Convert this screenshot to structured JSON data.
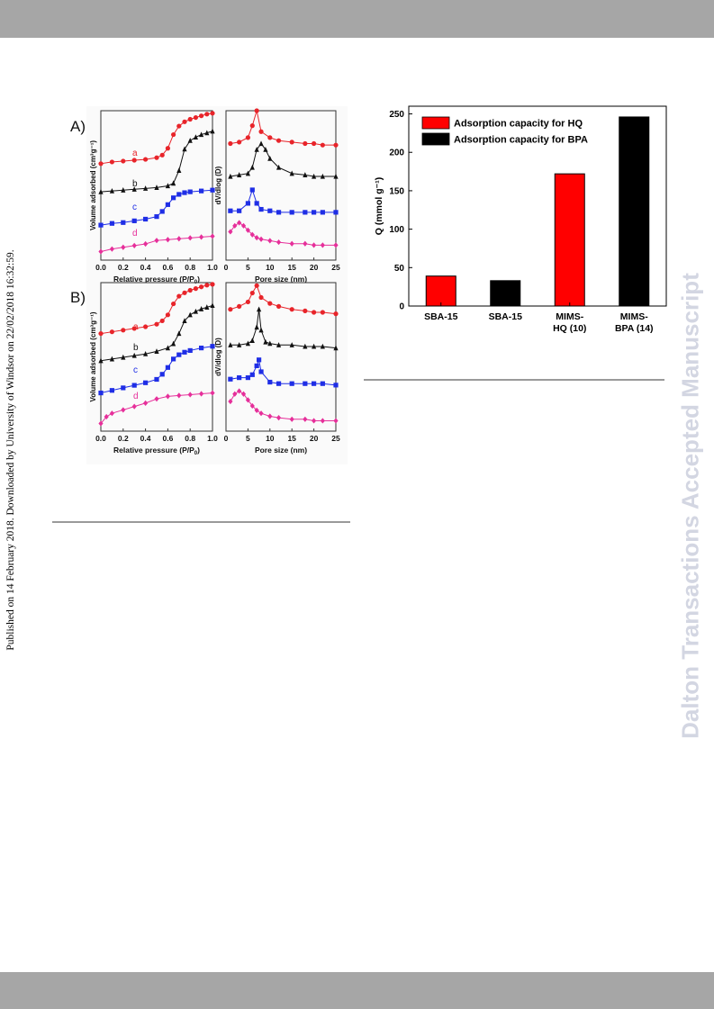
{
  "header_band": "",
  "side_text": "Published on 14 February 2018. Downloaded by University of Windsor on 22/02/2018 16:32:59.",
  "watermark": "Dalton Transactions Accepted Manuscript",
  "figure_left": {
    "panels": [
      {
        "label": "A)",
        "iso_chart": {
          "type": "line",
          "xlabel_main": "Relative pressure (P/P",
          "xlabel_sub": "0",
          "xlabel_end": ")",
          "ylabel": "Volume adsorbed (cm³g⁻¹)",
          "xlim": [
            0.0,
            1.0
          ],
          "xticks": [
            "0.0",
            "0.2",
            "0.4",
            "0.6",
            "0.8",
            "1.0"
          ],
          "series": [
            {
              "name": "a",
              "color": "#e8242a",
              "marker": "circle",
              "x": [
                0.0,
                0.1,
                0.2,
                0.3,
                0.4,
                0.5,
                0.55,
                0.6,
                0.65,
                0.7,
                0.75,
                0.8,
                0.85,
                0.9,
                0.95,
                1.0
              ],
              "y": [
                0.38,
                0.4,
                0.41,
                0.42,
                0.43,
                0.45,
                0.48,
                0.56,
                0.72,
                0.82,
                0.87,
                0.9,
                0.92,
                0.94,
                0.96,
                0.97
              ]
            },
            {
              "name": "b",
              "color": "#111111",
              "marker": "triangle",
              "x": [
                0.0,
                0.1,
                0.2,
                0.3,
                0.4,
                0.5,
                0.6,
                0.65,
                0.7,
                0.75,
                0.8,
                0.85,
                0.9,
                0.95,
                1.0
              ],
              "y": [
                0.05,
                0.06,
                0.07,
                0.08,
                0.09,
                0.1,
                0.12,
                0.15,
                0.3,
                0.55,
                0.65,
                0.69,
                0.72,
                0.74,
                0.76
              ]
            },
            {
              "name": "c",
              "color": "#1f2ee6",
              "marker": "square",
              "x": [
                0.0,
                0.1,
                0.2,
                0.3,
                0.4,
                0.5,
                0.55,
                0.6,
                0.65,
                0.7,
                0.75,
                0.8,
                0.9,
                1.0
              ],
              "y": [
                -0.34,
                -0.32,
                -0.31,
                -0.29,
                -0.27,
                -0.24,
                -0.18,
                -0.1,
                -0.02,
                0.02,
                0.04,
                0.05,
                0.06,
                0.07
              ]
            },
            {
              "name": "d",
              "color": "#e62f9a",
              "marker": "diamond",
              "x": [
                0.0,
                0.1,
                0.2,
                0.3,
                0.4,
                0.5,
                0.6,
                0.7,
                0.8,
                0.9,
                1.0
              ],
              "y": [
                -0.65,
                -0.62,
                -0.6,
                -0.58,
                -0.56,
                -0.52,
                -0.51,
                -0.5,
                -0.49,
                -0.48,
                -0.47
              ]
            }
          ]
        },
        "psd_chart": {
          "type": "line",
          "xlabel": "Pore size (nm)",
          "ylabel": "dV/dlog (D)",
          "xlim": [
            0,
            25
          ],
          "xticks": [
            "0",
            "5",
            "10",
            "15",
            "20",
            "25"
          ],
          "series": [
            {
              "name": "a",
              "color": "#e8242a",
              "marker": "circle",
              "x": [
                1,
                3,
                5,
                6,
                7,
                8,
                10,
                12,
                15,
                18,
                20,
                22,
                25
              ],
              "y": [
                0.78,
                0.79,
                0.82,
                0.9,
                1.0,
                0.86,
                0.82,
                0.8,
                0.79,
                0.78,
                0.78,
                0.77,
                0.77
              ]
            },
            {
              "name": "b",
              "color": "#111111",
              "marker": "triangle",
              "x": [
                1,
                3,
                5,
                6,
                7,
                8,
                9,
                10,
                12,
                15,
                18,
                20,
                22,
                25
              ],
              "y": [
                0.56,
                0.57,
                0.58,
                0.62,
                0.74,
                0.78,
                0.74,
                0.68,
                0.62,
                0.58,
                0.57,
                0.56,
                0.56,
                0.56
              ]
            },
            {
              "name": "c",
              "color": "#1f2ee6",
              "marker": "square",
              "x": [
                1,
                3,
                5,
                6,
                7,
                8,
                10,
                12,
                15,
                18,
                20,
                22,
                25
              ],
              "y": [
                0.33,
                0.33,
                0.38,
                0.47,
                0.38,
                0.34,
                0.33,
                0.32,
                0.32,
                0.32,
                0.32,
                0.32,
                0.32
              ]
            },
            {
              "name": "d",
              "color": "#e62f9a",
              "marker": "diamond",
              "x": [
                1,
                2,
                3,
                4,
                5,
                6,
                7,
                8,
                10,
                12,
                15,
                18,
                20,
                22,
                25
              ],
              "y": [
                0.19,
                0.23,
                0.25,
                0.23,
                0.2,
                0.17,
                0.15,
                0.14,
                0.13,
                0.12,
                0.11,
                0.11,
                0.1,
                0.1,
                0.1
              ]
            }
          ]
        }
      },
      {
        "label": "B)",
        "iso_chart": {
          "type": "line",
          "xlabel_main": "Relative pressure (P/P",
          "xlabel_sub": "0",
          "xlabel_end": ")",
          "ylabel": "Volume adsorbed (cm³g⁻¹)",
          "xlim": [
            0.0,
            1.0
          ],
          "xticks": [
            "0.0",
            "0.2",
            "0.4",
            "0.6",
            "0.8",
            "1.0"
          ],
          "series": [
            {
              "name": "a",
              "color": "#e8242a",
              "marker": "circle",
              "x": [
                0.0,
                0.1,
                0.2,
                0.3,
                0.4,
                0.5,
                0.55,
                0.6,
                0.65,
                0.7,
                0.75,
                0.8,
                0.85,
                0.9,
                0.95,
                1.0
              ],
              "y": [
                0.4,
                0.42,
                0.44,
                0.46,
                0.48,
                0.51,
                0.55,
                0.62,
                0.75,
                0.84,
                0.88,
                0.91,
                0.93,
                0.95,
                0.97,
                0.98
              ]
            },
            {
              "name": "b",
              "color": "#111111",
              "marker": "triangle",
              "x": [
                0.0,
                0.1,
                0.2,
                0.3,
                0.4,
                0.5,
                0.6,
                0.65,
                0.7,
                0.75,
                0.8,
                0.85,
                0.9,
                0.95,
                1.0
              ],
              "y": [
                0.08,
                0.1,
                0.12,
                0.14,
                0.16,
                0.19,
                0.23,
                0.28,
                0.4,
                0.55,
                0.62,
                0.66,
                0.69,
                0.71,
                0.73
              ]
            },
            {
              "name": "c",
              "color": "#1f2ee6",
              "marker": "square",
              "x": [
                0.0,
                0.1,
                0.2,
                0.3,
                0.4,
                0.5,
                0.55,
                0.6,
                0.65,
                0.7,
                0.75,
                0.8,
                0.9,
                1.0
              ],
              "y": [
                -0.3,
                -0.27,
                -0.24,
                -0.21,
                -0.18,
                -0.14,
                -0.08,
                0.0,
                0.1,
                0.15,
                0.18,
                0.2,
                0.23,
                0.25
              ]
            },
            {
              "name": "d",
              "color": "#e62f9a",
              "marker": "diamond",
              "x": [
                0.0,
                0.05,
                0.1,
                0.2,
                0.3,
                0.4,
                0.5,
                0.6,
                0.7,
                0.8,
                0.9,
                1.0
              ],
              "y": [
                -0.66,
                -0.58,
                -0.54,
                -0.5,
                -0.46,
                -0.42,
                -0.37,
                -0.34,
                -0.33,
                -0.32,
                -0.31,
                -0.3
              ]
            }
          ]
        },
        "psd_chart": {
          "type": "line",
          "xlabel": "Pore size (nm)",
          "ylabel": "dV/dlog (D)",
          "xlim": [
            0,
            25
          ],
          "xticks": [
            "0",
            "5",
            "10",
            "15",
            "20",
            "25"
          ],
          "series": [
            {
              "name": "a",
              "color": "#e8242a",
              "marker": "circle",
              "x": [
                1,
                3,
                5,
                6,
                7,
                8,
                10,
                12,
                15,
                18,
                20,
                22,
                25
              ],
              "y": [
                0.82,
                0.84,
                0.87,
                0.93,
                0.98,
                0.9,
                0.86,
                0.84,
                0.82,
                0.81,
                0.8,
                0.8,
                0.79
              ]
            },
            {
              "name": "b",
              "color": "#111111",
              "marker": "triangle",
              "x": [
                1,
                3,
                5,
                6,
                7,
                7.5,
                8,
                9,
                10,
                12,
                15,
                18,
                20,
                22,
                25
              ],
              "y": [
                0.58,
                0.58,
                0.59,
                0.61,
                0.7,
                0.82,
                0.68,
                0.6,
                0.59,
                0.58,
                0.58,
                0.57,
                0.57,
                0.57,
                0.56
              ]
            },
            {
              "name": "c",
              "color": "#1f2ee6",
              "marker": "square",
              "x": [
                1,
                3,
                5,
                6,
                7,
                7.5,
                8,
                10,
                12,
                15,
                18,
                20,
                22,
                25
              ],
              "y": [
                0.35,
                0.36,
                0.36,
                0.38,
                0.44,
                0.48,
                0.4,
                0.33,
                0.32,
                0.32,
                0.32,
                0.32,
                0.32,
                0.31
              ]
            },
            {
              "name": "d",
              "color": "#e62f9a",
              "marker": "diamond",
              "x": [
                1,
                2,
                3,
                4,
                5,
                6,
                7,
                8,
                10,
                12,
                15,
                18,
                20,
                22,
                25
              ],
              "y": [
                0.2,
                0.25,
                0.27,
                0.25,
                0.21,
                0.17,
                0.14,
                0.12,
                0.1,
                0.09,
                0.08,
                0.08,
                0.07,
                0.07,
                0.07
              ]
            }
          ]
        }
      }
    ]
  },
  "chart_data": {
    "type": "bar",
    "categories": [
      "SBA-15",
      "SBA-15",
      "MIMS-\nHQ (10)",
      "MIMS-\nBPA (14)"
    ],
    "values": [
      39,
      33,
      172,
      246
    ],
    "colors": [
      "#ff0000",
      "#000000",
      "#ff0000",
      "#000000"
    ],
    "title": "",
    "xlabel": "",
    "ylabel": "Q (mmol g⁻¹)",
    "ylim": [
      0,
      260
    ],
    "yticks": [
      0,
      50,
      100,
      150,
      200,
      250
    ],
    "legend": [
      {
        "label": "Adsorption capacity for HQ",
        "color": "#ff0000"
      },
      {
        "label": "Adsorption capacity for BPA",
        "color": "#000000"
      }
    ],
    "legend_position": "top-left"
  }
}
